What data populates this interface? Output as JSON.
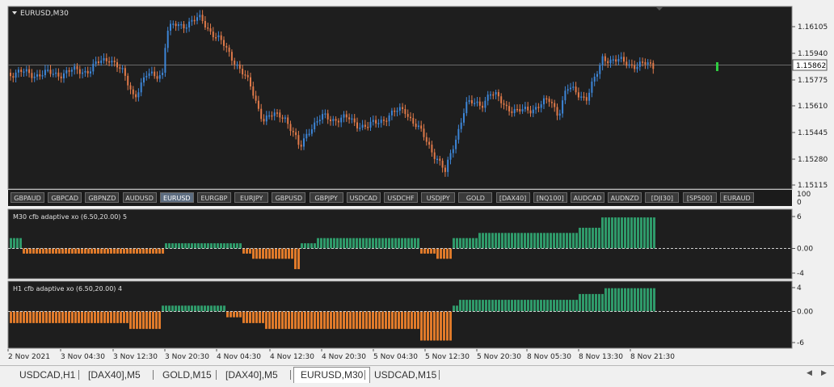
{
  "chart": {
    "symbol_label": "EURUSD,M30",
    "current_price": "1.15862",
    "colors": {
      "bull": "#3d86d8",
      "bear": "#e07a4a",
      "pane_bg": "#1e1e1e",
      "grid": "#3a3a3a",
      "cur_marker": "#2ecc40",
      "osc_pos": "#2f9a6a",
      "osc_neg": "#e07a2a"
    }
  },
  "price_axis": [
    "1.16105",
    "1.15940",
    "1.15775",
    "1.15610",
    "1.15445",
    "1.15280",
    "1.15115"
  ],
  "symbol_buttons": [
    "GBPAUD",
    "GBPCAD",
    "GBPNZD",
    "AUDUSD",
    "EURUSD",
    "EURGBP",
    "EURJPY",
    "GBPUSD",
    "GBPJPY",
    "USDCAD",
    "USDCHF",
    "USDJPY",
    "GOLD",
    "[DAX40]",
    "[NQ100]",
    "AUDCAD",
    "AUDNZD",
    "[DJI30]",
    "[SP500]",
    "EURAUD"
  ],
  "active_symbol": "EURUSD",
  "sym_axis": {
    "top": "100",
    "bottom": "0"
  },
  "indicator1": {
    "title": "M30  cfb adaptive xo (6.50,20.00) 5",
    "axis": [
      "6",
      "0.00",
      "-4"
    ]
  },
  "indicator2": {
    "title": "H1  cfb adaptive xo (6.50,20.00) 4",
    "axis": [
      "4",
      "0.00",
      "-6"
    ]
  },
  "time_axis": [
    "2 Nov 2021",
    "3 Nov 04:30",
    "3 Nov 12:30",
    "3 Nov 20:30",
    "4 Nov 04:30",
    "4 Nov 12:30",
    "4 Nov 20:30",
    "5 Nov 04:30",
    "5 Nov 12:30",
    "5 Nov 20:30",
    "8 Nov 05:30",
    "8 Nov 13:30",
    "8 Nov 21:30"
  ],
  "tabs": [
    "USDCAD,H1",
    "[DAX40],M5",
    "GOLD,M15",
    "[DAX40],M5",
    "EURUSD,M30",
    "USDCAD,M15"
  ],
  "active_tab": 4
}
